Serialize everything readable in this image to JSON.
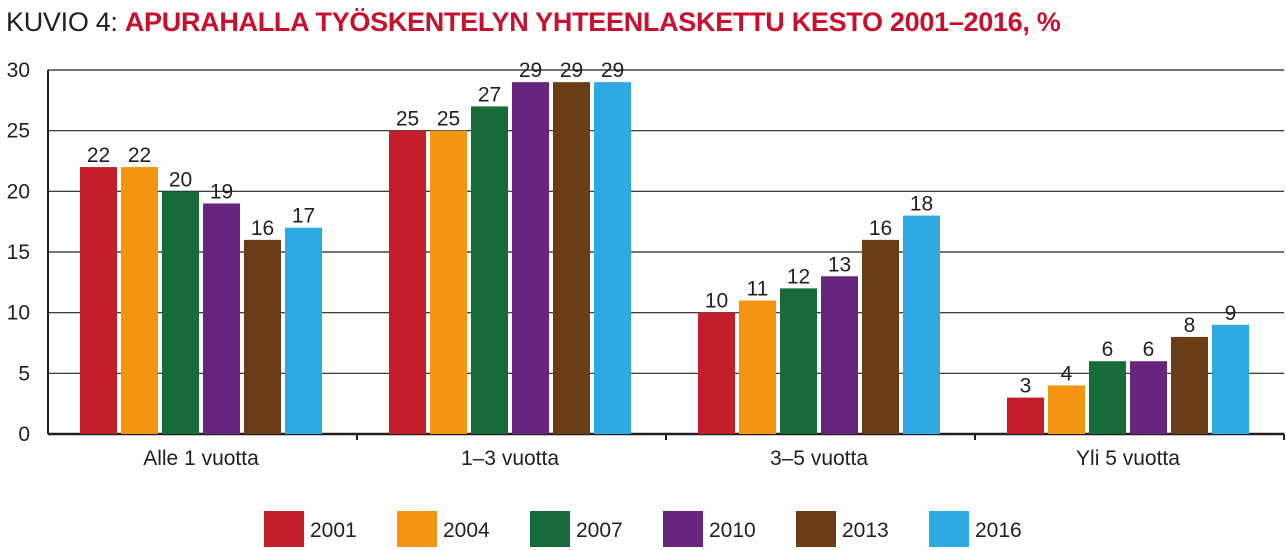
{
  "title": {
    "prefix": "KUVIO 4:",
    "main": "APURAHALLA TYÖSKENTELYN YHTEENLASKETTU KESTO 2001–2016",
    "suffix": ", %"
  },
  "colors": {
    "title_accent": "#c8102e",
    "axis": "#231f20",
    "grid": "#231f20"
  },
  "chart_data": {
    "type": "bar",
    "title": "APURAHALLA TYÖSKENTELYN YHTEENLASKETTU KESTO 2001–2016, %",
    "xlabel": "",
    "ylabel": "",
    "ylim": [
      0,
      30
    ],
    "yticks": [
      0,
      5,
      10,
      15,
      20,
      25,
      30
    ],
    "grid": true,
    "legend_position": "bottom",
    "categories": [
      "Alle 1 vuotta",
      "1–3 vuotta",
      "3–5 vuotta",
      "Yli 5 vuotta"
    ],
    "series": [
      {
        "name": "2001",
        "color": "#c41e2a",
        "values": [
          22,
          25,
          10,
          3
        ]
      },
      {
        "name": "2004",
        "color": "#f39511",
        "values": [
          22,
          25,
          11,
          4
        ]
      },
      {
        "name": "2007",
        "color": "#176a3a",
        "values": [
          20,
          27,
          12,
          6
        ]
      },
      {
        "name": "2010",
        "color": "#66267e",
        "values": [
          19,
          29,
          13,
          6
        ]
      },
      {
        "name": "2013",
        "color": "#6a3d17",
        "values": [
          16,
          29,
          16,
          8
        ]
      },
      {
        "name": "2016",
        "color": "#2fa9e2",
        "values": [
          17,
          29,
          18,
          9
        ]
      }
    ]
  }
}
